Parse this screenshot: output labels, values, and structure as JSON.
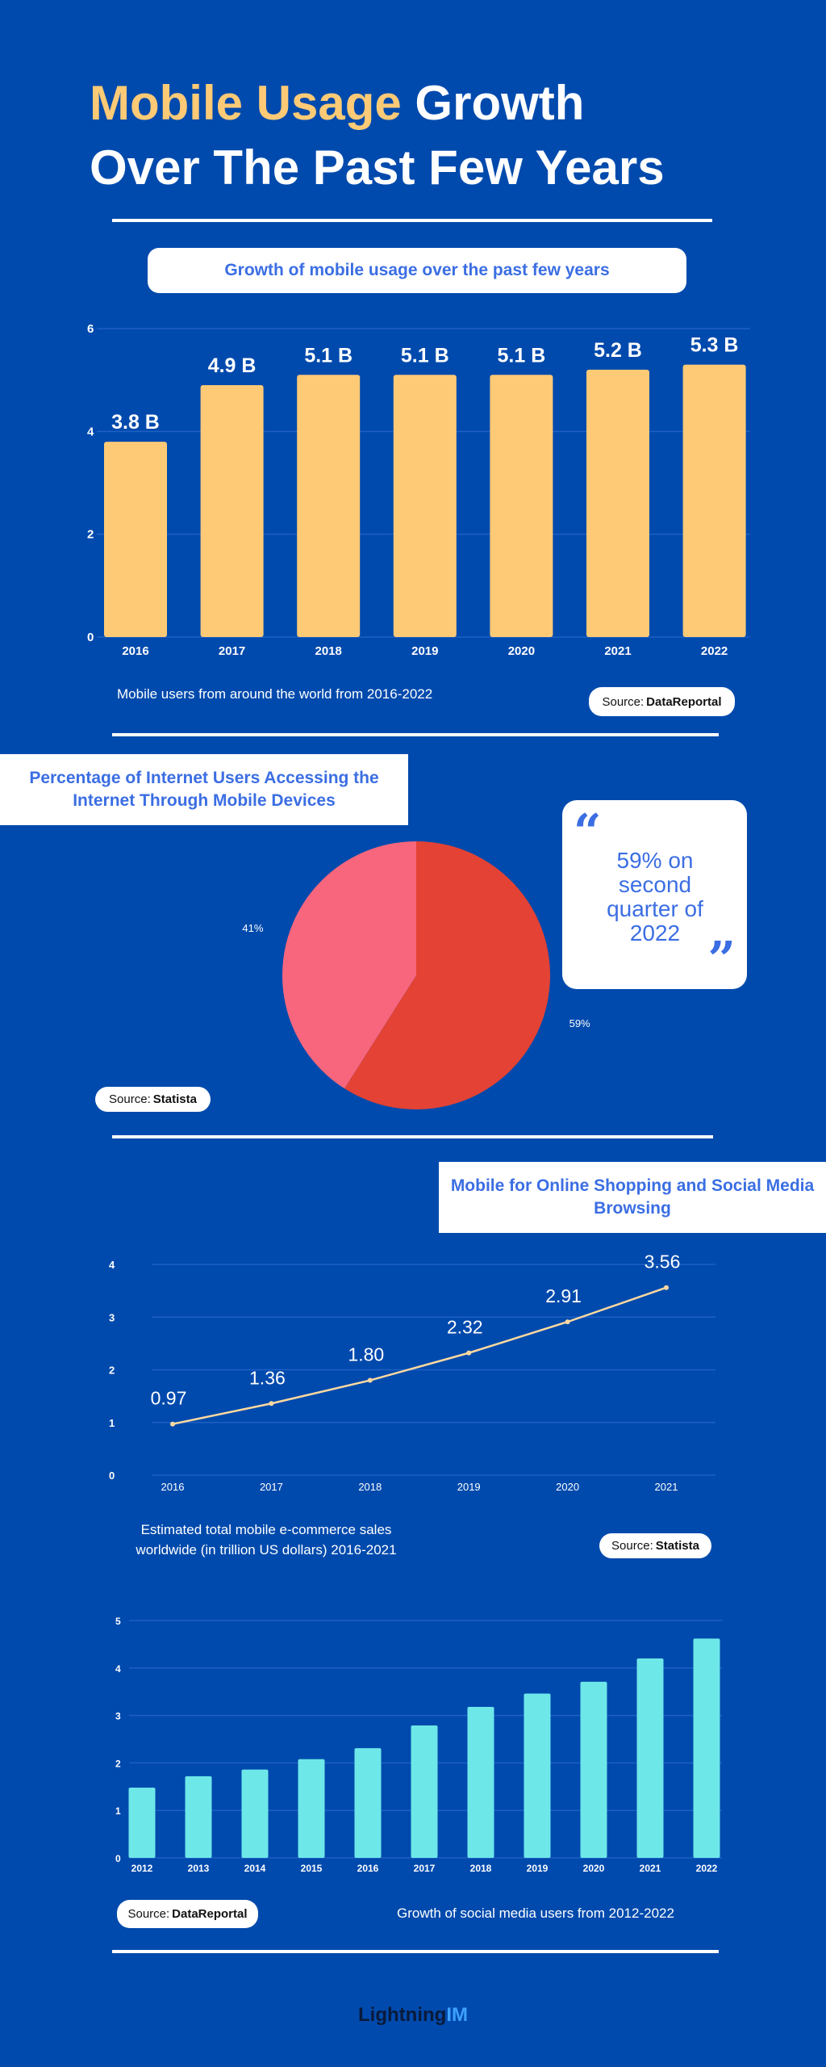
{
  "header": {
    "title_highlight": "Mobile Usage",
    "title_rest_line1": "Growth",
    "title_line2": "Over The Past Few Years"
  },
  "colors": {
    "background": "#004aad",
    "accent_yellow": "#ffca76",
    "accent_blue": "#3b6ee3",
    "cyan": "#6ee7e9",
    "pie_red": "#e34234",
    "pie_pink": "#f7667d",
    "line": "#ffd9a0"
  },
  "section1": {
    "heading": "Growth of mobile usage over the past few years",
    "caption": "Mobile users from around the world from 2016-2022",
    "source_label": "Source:",
    "source_name": "DataReportal"
  },
  "section2": {
    "heading": "Percentage of Internet Users Accessing the Internet Through Mobile Devices",
    "quote": "59% on second quarter of 2022",
    "source_label": "Source:",
    "source_name": "Statista"
  },
  "section3": {
    "heading": "Mobile for Online Shopping and Social Media Browsing",
    "caption": "Estimated total mobile e-commerce sales worldwide (in trillion US dollars) 2016-2021",
    "source_label": "Source:",
    "source_name": "Statista"
  },
  "section4": {
    "caption": "Growth of social media users from 2012-2022",
    "source_label": "Source:",
    "source_name": "DataReportal"
  },
  "footer": {
    "logo_text": "Lightning",
    "logo_suffix": "IM"
  },
  "chart_data": [
    {
      "type": "bar",
      "categories": [
        "2016",
        "2017",
        "2018",
        "2019",
        "2020",
        "2021",
        "2022"
      ],
      "values": [
        3.8,
        4.9,
        5.1,
        5.1,
        5.1,
        5.2,
        5.3
      ],
      "data_labels": [
        "3.8 B",
        "4.9 B",
        "5.1 B",
        "5.1 B",
        "5.1 B",
        "5.2 B",
        "5.3 B"
      ],
      "ylim": [
        0,
        6
      ],
      "yticks": [
        0,
        2,
        4,
        6
      ],
      "grid": true,
      "color": "#ffca76"
    },
    {
      "type": "pie",
      "values": [
        59,
        41
      ],
      "data_labels": [
        "59%",
        "41%"
      ],
      "colors": [
        "#e34234",
        "#f7667d"
      ]
    },
    {
      "type": "line",
      "categories": [
        "2016",
        "2017",
        "2018",
        "2019",
        "2020",
        "2021"
      ],
      "values": [
        0.97,
        1.36,
        1.8,
        2.32,
        2.91,
        3.56
      ],
      "data_labels": [
        "0.97",
        "1.36",
        "1.80",
        "2.32",
        "2.91",
        "3.56"
      ],
      "ylim": [
        0,
        4
      ],
      "yticks": [
        0,
        1,
        2,
        3,
        4
      ],
      "grid": true,
      "color": "#ffd9a0"
    },
    {
      "type": "bar",
      "categories": [
        "2012",
        "2013",
        "2014",
        "2015",
        "2016",
        "2017",
        "2018",
        "2019",
        "2020",
        "2021",
        "2022"
      ],
      "values": [
        1.48,
        1.72,
        1.86,
        2.08,
        2.31,
        2.79,
        3.18,
        3.46,
        3.71,
        4.2,
        4.62
      ],
      "ylim": [
        0,
        5
      ],
      "yticks": [
        0,
        1,
        2,
        3,
        4,
        5
      ],
      "grid": true,
      "color": "#6ee7e9"
    }
  ]
}
